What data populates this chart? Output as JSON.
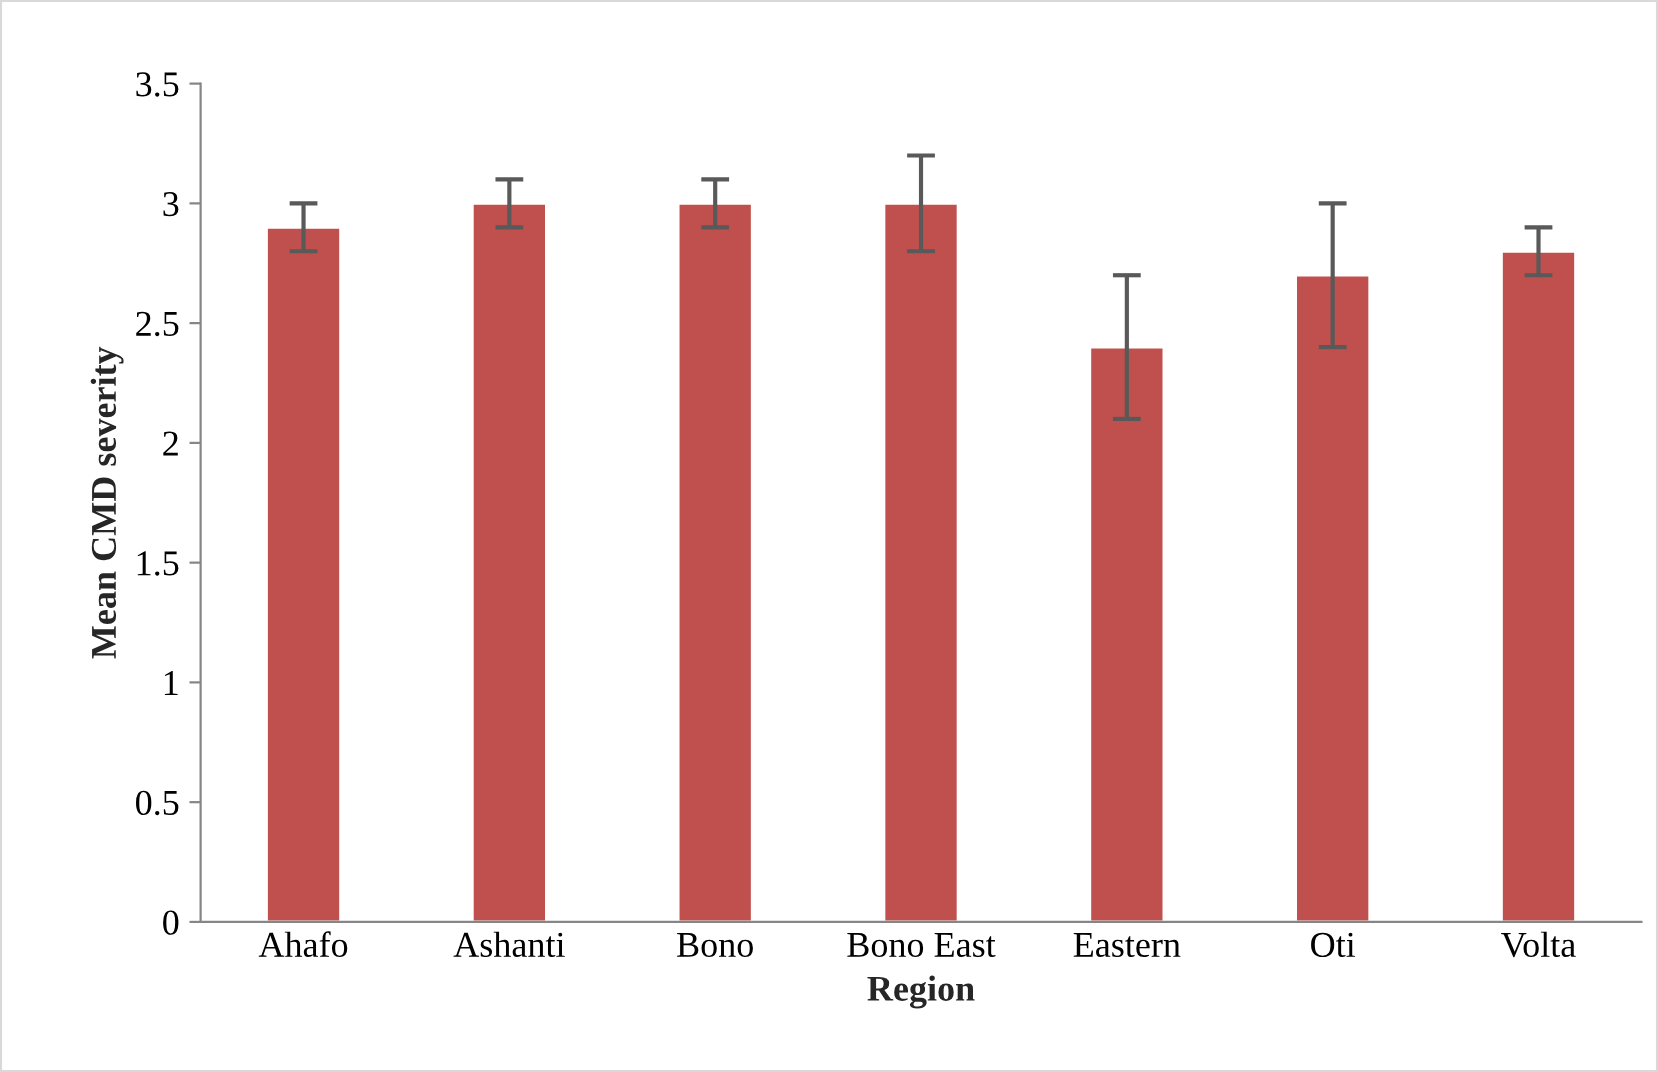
{
  "chart_data": {
    "type": "bar",
    "xlabel": "Region",
    "ylabel": "Mean CMD severity",
    "categories": [
      "Ahafo",
      "Ashanti",
      "Bono",
      "Bono East",
      "Eastern",
      "Oti",
      "Volta"
    ],
    "values": [
      2.9,
      3.0,
      3.0,
      3.0,
      2.4,
      2.7,
      2.8
    ],
    "errors": [
      0.1,
      0.1,
      0.1,
      0.2,
      0.3,
      0.3,
      0.1
    ],
    "color": "#c0504d",
    "ylim": [
      0,
      3.5
    ],
    "yticks": [
      0,
      0.5,
      1,
      1.5,
      2,
      2.5,
      3,
      3.5
    ],
    "grid": false,
    "legend": false
  }
}
